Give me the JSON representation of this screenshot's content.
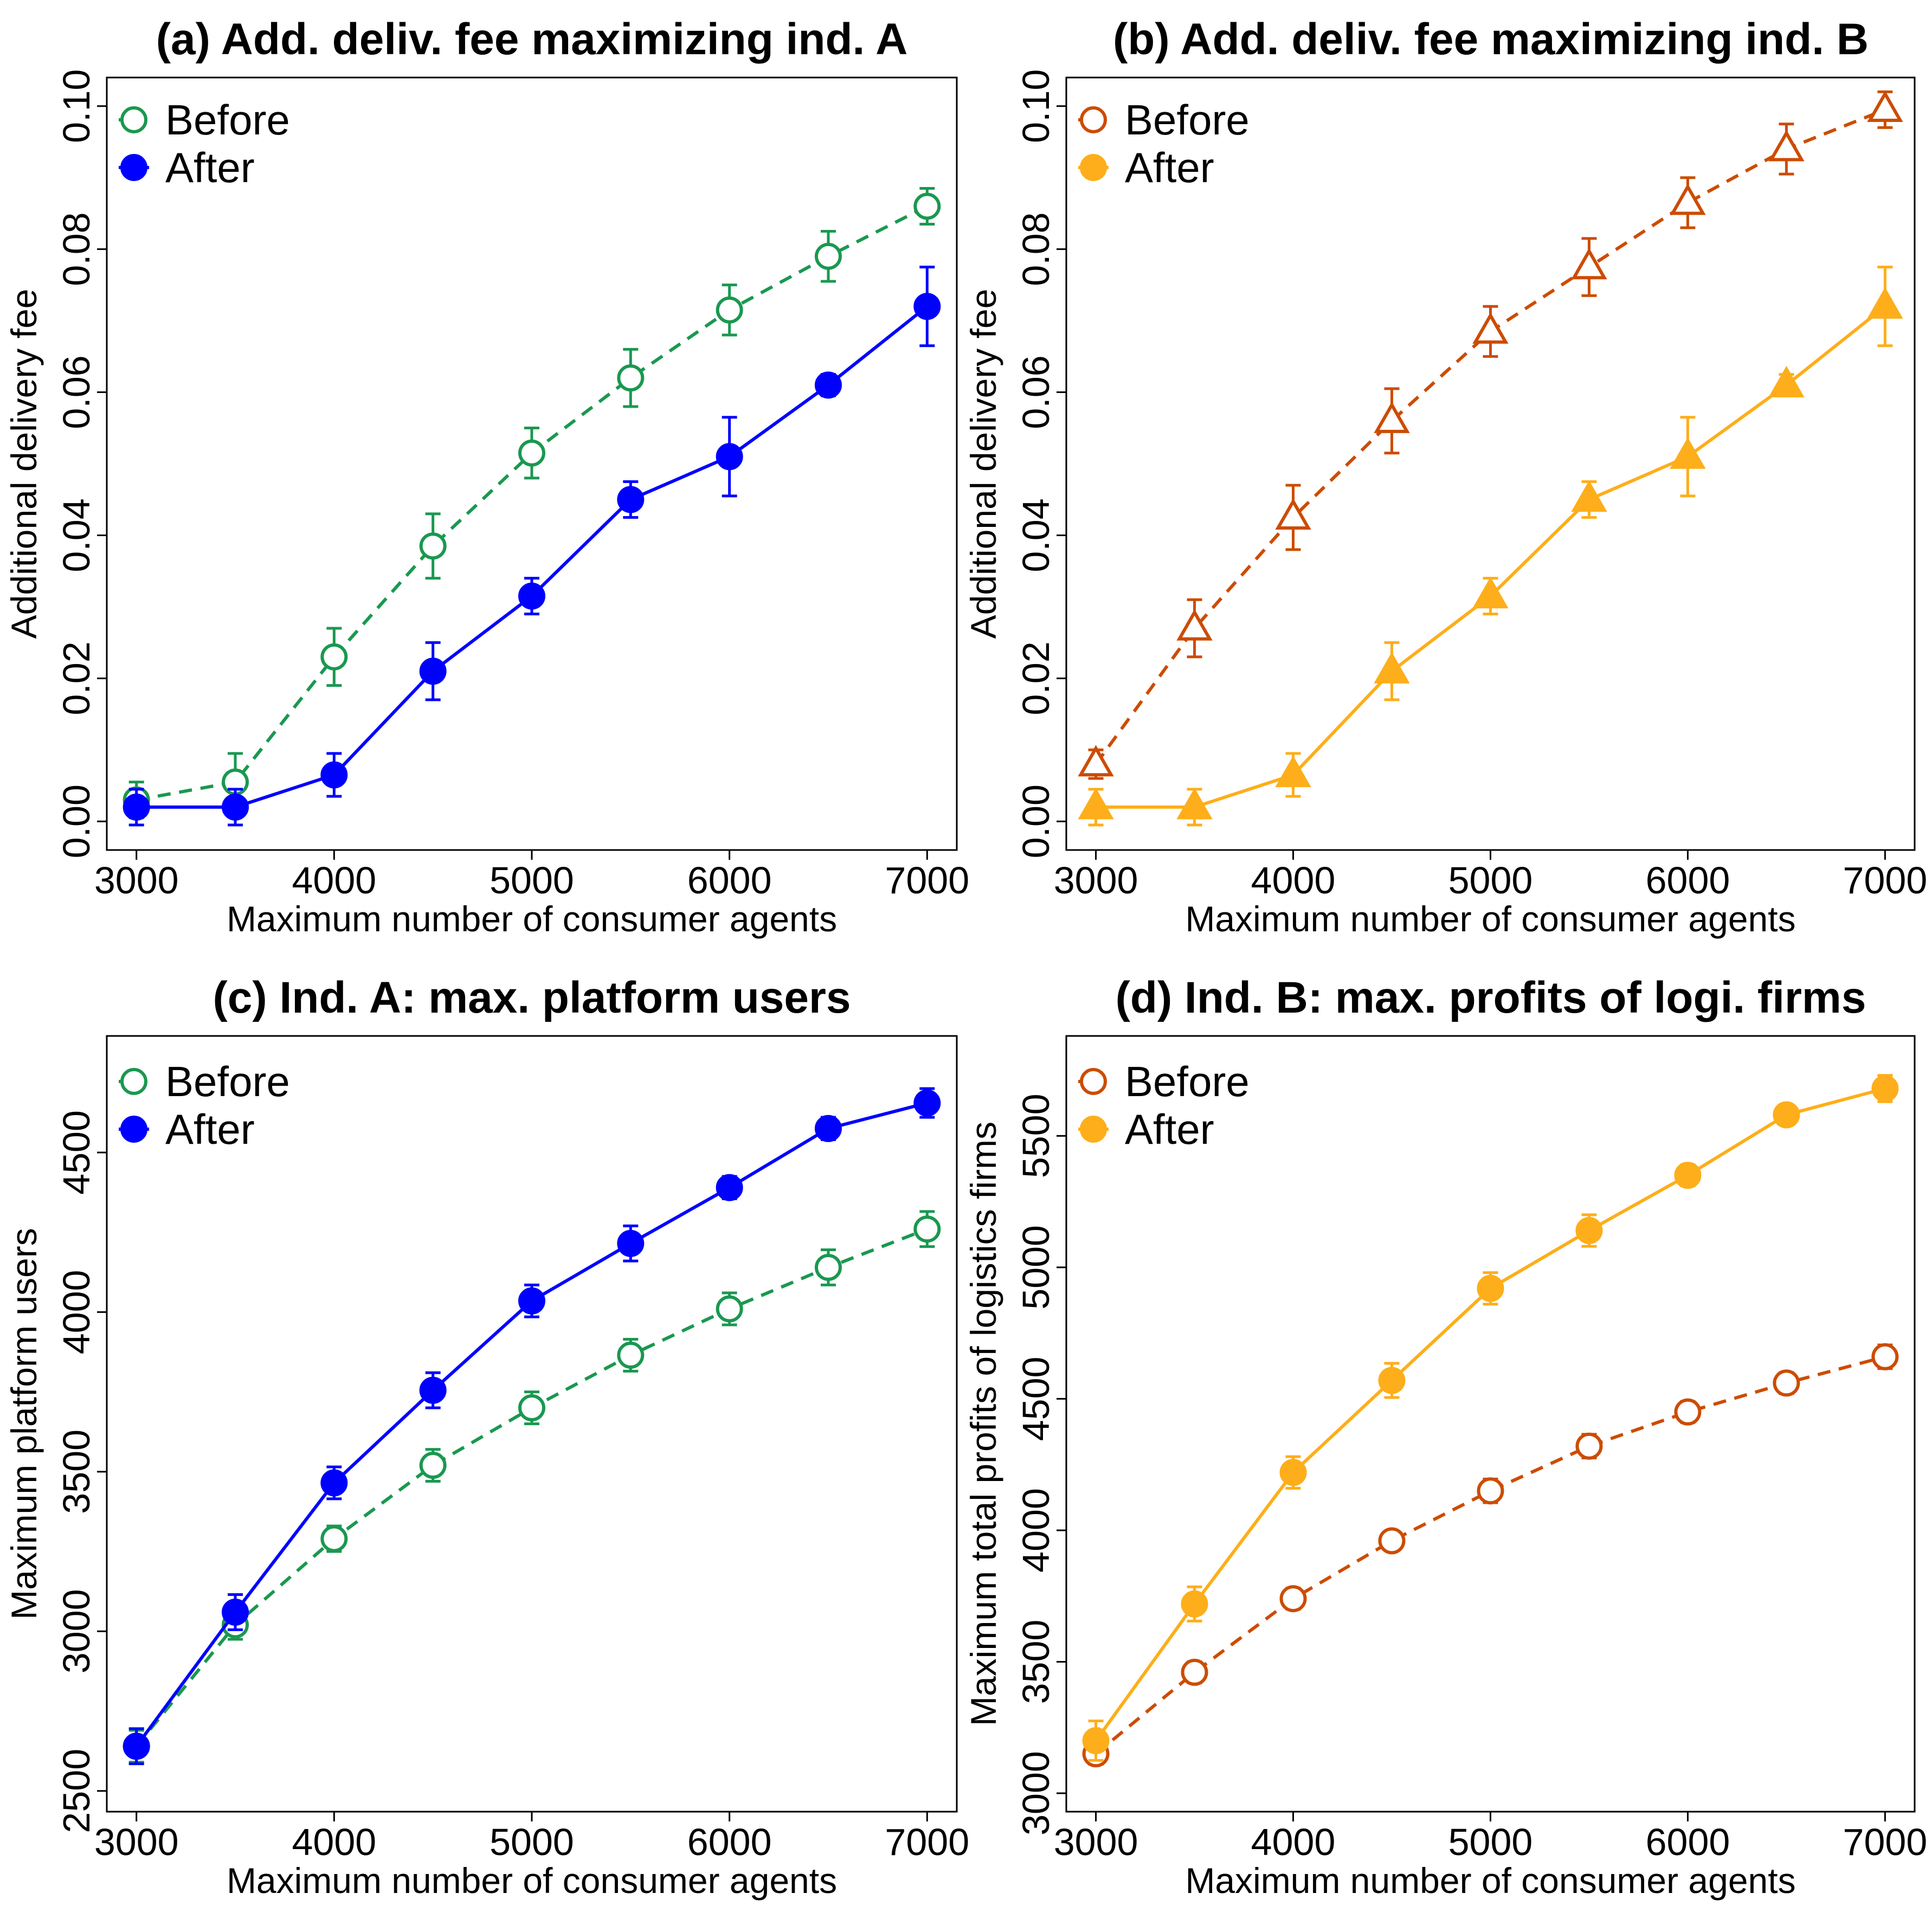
{
  "chart_data": [
    {
      "id": "a",
      "type": "line",
      "title": "(a) Add. deliv. fee maximizing ind. A",
      "xlabel": "Maximum number of consumer agents",
      "ylabel": "Additional delivery fee",
      "xlim": [
        2850,
        7150
      ],
      "ylim": [
        -0.004,
        0.104
      ],
      "xticks": [
        3000,
        4000,
        5000,
        6000,
        7000
      ],
      "xtick_labels": [
        "3000",
        "4000",
        "5000",
        "6000",
        "7000"
      ],
      "yticks": [
        0,
        0.02,
        0.04,
        0.06,
        0.08,
        0.1
      ],
      "ytick_labels": [
        "0.00",
        "0.02",
        "0.04",
        "0.06",
        "0.08",
        "0.10"
      ],
      "legend_position": "top-left",
      "x": [
        3000,
        3500,
        4000,
        4500,
        5000,
        5500,
        6000,
        6500,
        7000
      ],
      "series": [
        {
          "name": "Before",
          "color": "#1a9850",
          "marker": "circle-open",
          "dash": true,
          "values": [
            0.003,
            0.0055,
            0.023,
            0.0385,
            0.0515,
            0.062,
            0.0715,
            0.079,
            0.086
          ],
          "err": [
            0.0025,
            0.004,
            0.004,
            0.0045,
            0.0035,
            0.004,
            0.0035,
            0.0035,
            0.0025
          ]
        },
        {
          "name": "After",
          "color": "#0000ff",
          "marker": "circle-filled",
          "dash": false,
          "values": [
            0.002,
            0.002,
            0.0065,
            0.021,
            0.0315,
            0.045,
            0.051,
            0.061,
            0.072
          ],
          "err": [
            0.0025,
            0.0025,
            0.003,
            0.004,
            0.0025,
            0.0025,
            0.0055,
            0.0015,
            0.0055
          ]
        }
      ]
    },
    {
      "id": "b",
      "type": "line",
      "title": "(b) Add. deliv. fee maximizing ind. B",
      "xlabel": "Maximum number of consumer agents",
      "ylabel": "Additional delivery fee",
      "xlim": [
        2850,
        7150
      ],
      "ylim": [
        -0.004,
        0.104
      ],
      "xticks": [
        3000,
        4000,
        5000,
        6000,
        7000
      ],
      "xtick_labels": [
        "3000",
        "4000",
        "5000",
        "6000",
        "7000"
      ],
      "yticks": [
        0,
        0.02,
        0.04,
        0.06,
        0.08,
        0.1
      ],
      "ytick_labels": [
        "0.00",
        "0.02",
        "0.04",
        "0.06",
        "0.08",
        "0.10"
      ],
      "legend_position": "top-left",
      "x": [
        3000,
        3500,
        4000,
        4500,
        5000,
        5500,
        6000,
        6500,
        7000
      ],
      "series": [
        {
          "name": "Before",
          "color": "#cc4c02",
          "marker": "circle-open",
          "dash": true,
          "plot_marker": "triangle-open",
          "values": [
            0.008,
            0.027,
            0.0425,
            0.056,
            0.0685,
            0.0775,
            0.0865,
            0.094,
            0.0995
          ],
          "err": [
            0.002,
            0.004,
            0.0045,
            0.0045,
            0.0035,
            0.004,
            0.0035,
            0.0035,
            0.0025
          ]
        },
        {
          "name": "After",
          "color": "#fdae1a",
          "marker": "circle-filled",
          "dash": false,
          "plot_marker": "triangle-filled",
          "values": [
            0.002,
            0.002,
            0.0065,
            0.021,
            0.0315,
            0.045,
            0.051,
            0.061,
            0.072
          ],
          "err": [
            0.0025,
            0.0025,
            0.003,
            0.004,
            0.0025,
            0.0025,
            0.0055,
            0.0015,
            0.0055
          ]
        }
      ]
    },
    {
      "id": "c",
      "type": "line",
      "title": "(c) Ind. A: max. platform users",
      "xlabel": "Maximum number of consumer agents",
      "ylabel": "Maximum platform users",
      "xlim": [
        2850,
        7150
      ],
      "ylim": [
        2435,
        4865
      ],
      "xticks": [
        3000,
        4000,
        5000,
        6000,
        7000
      ],
      "xtick_labels": [
        "3000",
        "4000",
        "5000",
        "6000",
        "7000"
      ],
      "yticks": [
        2500,
        3000,
        3500,
        4000,
        4500
      ],
      "ytick_labels": [
        "2500",
        "3000",
        "3500",
        "4000",
        "4500"
      ],
      "legend_position": "top-left",
      "x": [
        3000,
        3500,
        4000,
        4500,
        5000,
        5500,
        6000,
        6500,
        7000
      ],
      "series": [
        {
          "name": "Before",
          "color": "#1a9850",
          "marker": "circle-open",
          "dash": true,
          "values": [
            2640,
            3020,
            3290,
            3520,
            3700,
            3865,
            4010,
            4140,
            4260
          ],
          "err": [
            50,
            45,
            40,
            50,
            50,
            50,
            50,
            55,
            55
          ]
        },
        {
          "name": "After",
          "color": "#0000ff",
          "marker": "circle-filled",
          "dash": false,
          "values": [
            2640,
            3060,
            3465,
            3755,
            4035,
            4215,
            4390,
            4575,
            4655
          ],
          "err": [
            55,
            55,
            50,
            55,
            50,
            55,
            35,
            35,
            45
          ]
        }
      ]
    },
    {
      "id": "d",
      "type": "line",
      "title": "(d) Ind. B: max. profits of logi. firms",
      "xlabel": "Maximum number of consumer agents",
      "ylabel": "Maximum total profits of logistics firms",
      "xlim": [
        2850,
        7150
      ],
      "ylim": [
        2930,
        5880
      ],
      "xticks": [
        3000,
        4000,
        5000,
        6000,
        7000
      ],
      "xtick_labels": [
        "3000",
        "4000",
        "5000",
        "6000",
        "7000"
      ],
      "yticks": [
        3000,
        3500,
        4000,
        4500,
        5000,
        5500
      ],
      "ytick_labels": [
        "3000",
        "3500",
        "4000",
        "4500",
        "5000",
        "5500"
      ],
      "legend_position": "top-left",
      "x": [
        3000,
        3500,
        4000,
        4500,
        5000,
        5500,
        6000,
        6500,
        7000
      ],
      "series": [
        {
          "name": "Before",
          "color": "#cc4c02",
          "marker": "circle-open",
          "dash": true,
          "values": [
            3150,
            3460,
            3740,
            3960,
            4150,
            4320,
            4450,
            4560,
            4660
          ],
          "err": [
            40,
            40,
            40,
            35,
            45,
            45,
            40,
            40,
            45
          ]
        },
        {
          "name": "After",
          "color": "#fdae1a",
          "marker": "circle-filled",
          "dash": false,
          "values": [
            3200,
            3720,
            4220,
            4570,
            4920,
            5140,
            5350,
            5580,
            5680
          ],
          "err": [
            75,
            65,
            60,
            65,
            60,
            60,
            40,
            35,
            50
          ]
        }
      ]
    }
  ]
}
